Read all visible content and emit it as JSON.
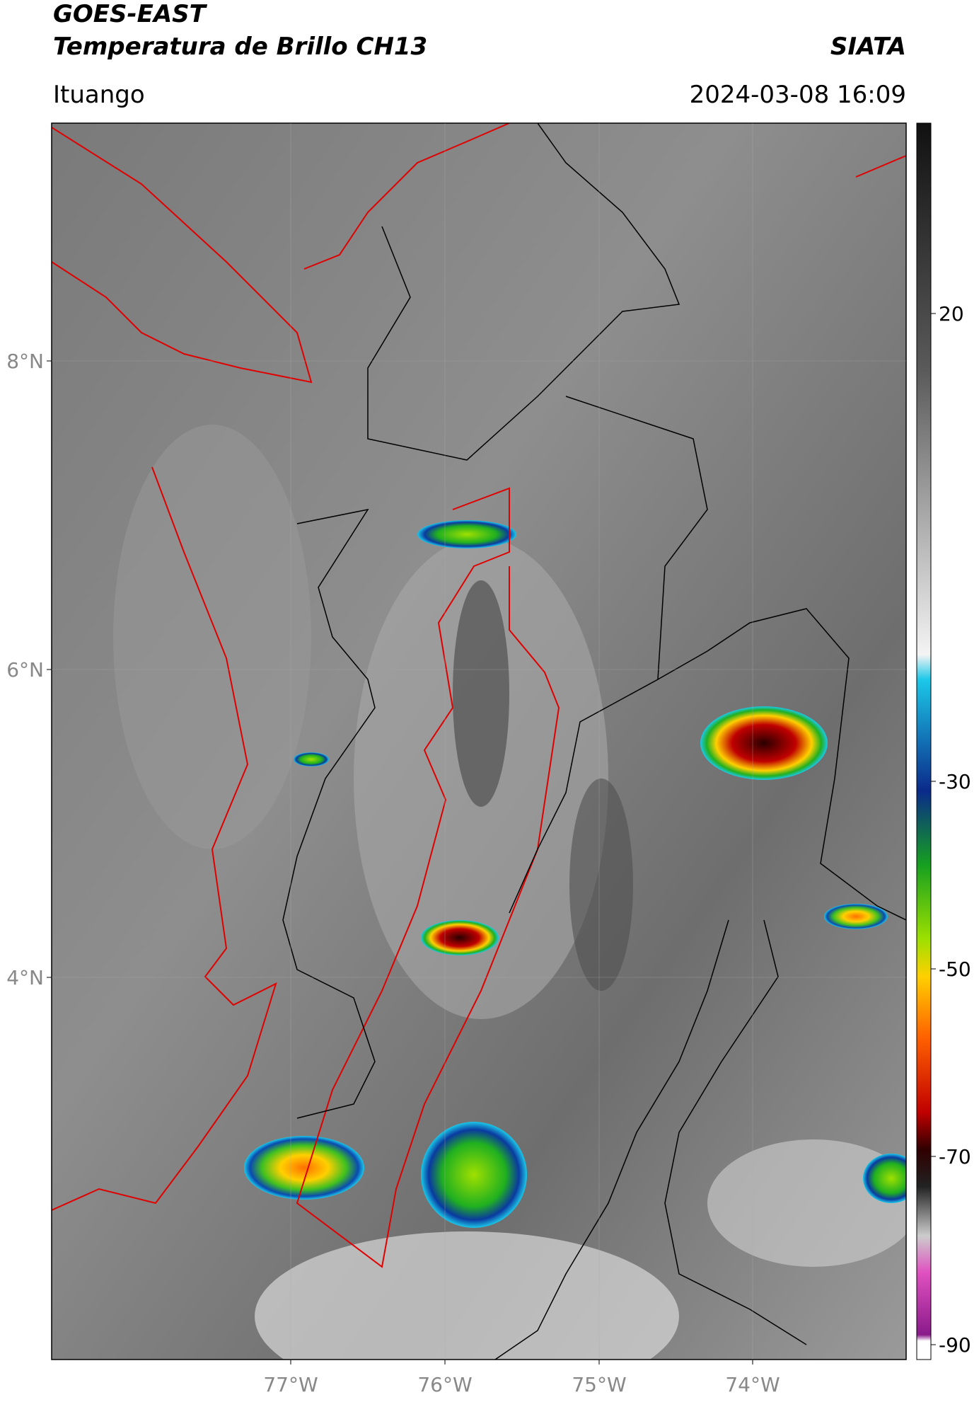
{
  "header": {
    "satellite": "GOES-EAST",
    "product": "Temperatura de Brillo CH13",
    "organization": "SIATA",
    "region": "Ituango",
    "timestamp": "2024-03-08 16:09"
  },
  "map": {
    "lat_ticks": [
      "8°N",
      "6°N",
      "4°N"
    ],
    "lon_ticks": [
      "77°W",
      "76°W",
      "75°W",
      "74°W"
    ]
  },
  "colorbar": {
    "ticks": [
      20,
      -30,
      -50,
      -70,
      -90
    ]
  }
}
